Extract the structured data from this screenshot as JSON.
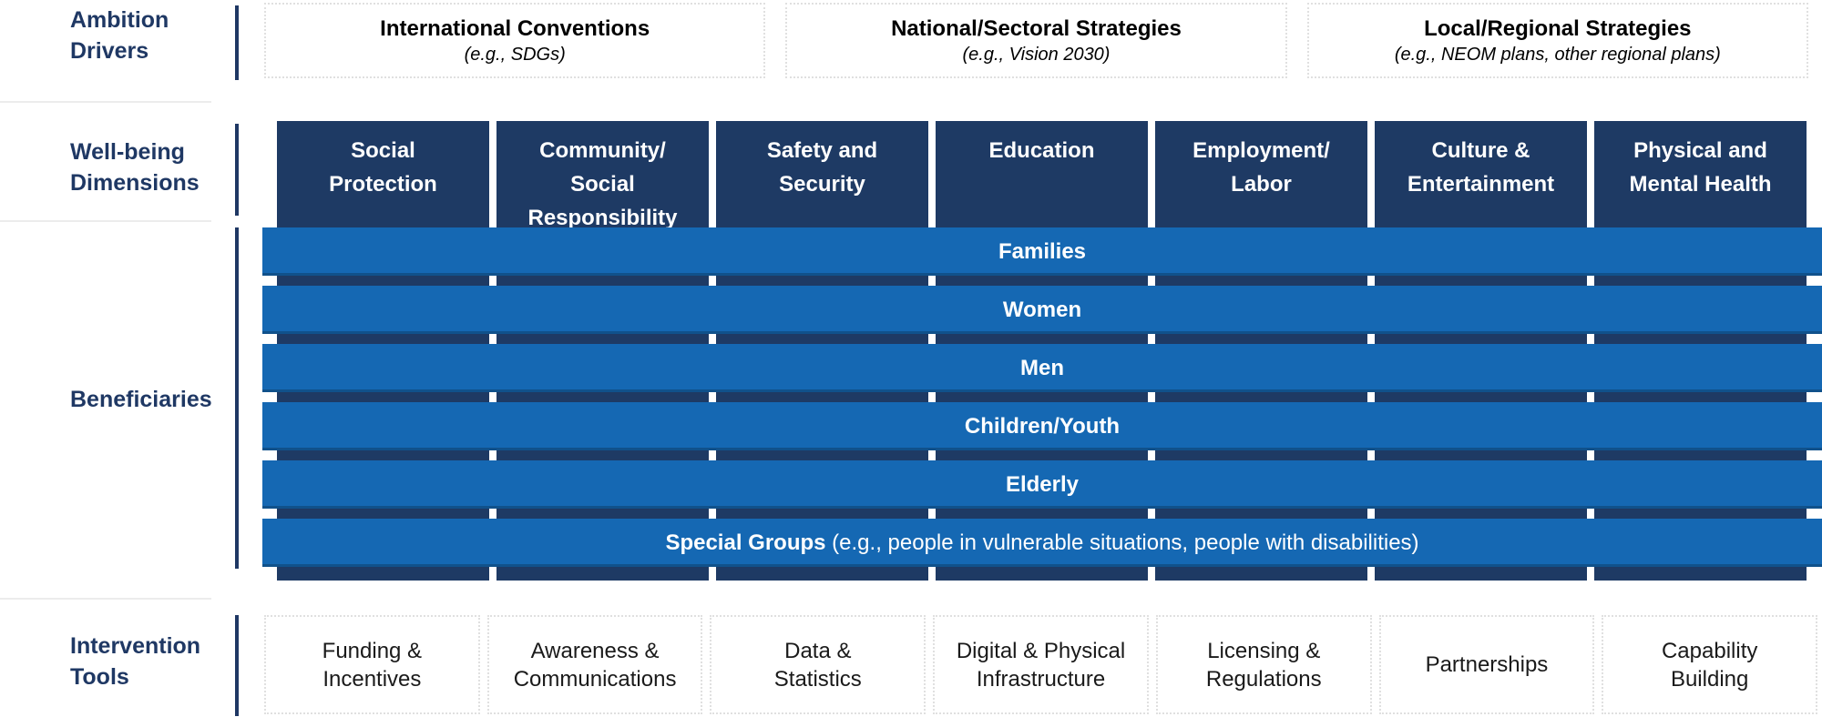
{
  "palette": {
    "navy": "#1E3A64",
    "bar_blue": "#1568B3",
    "label_navy": "#1F3864",
    "dotted_border_gray": "#E0E0E0",
    "separator_gray": "#ECECEC",
    "white": "#FFFFFF",
    "black": "#000000"
  },
  "row_labels": {
    "ambition": "Ambition\nDrivers",
    "wellbeing": "Well-being\nDimensions",
    "beneficiaries": "Beneficiaries",
    "intervention": "Intervention\nTools"
  },
  "ambition_drivers": {
    "items": [
      {
        "title": "International Conventions",
        "example": "(e.g., SDGs)"
      },
      {
        "title": "National/Sectoral Strategies",
        "example": "(e.g., Vision 2030)"
      },
      {
        "title": "Local/Regional Strategies",
        "example": "(e.g., NEOM plans, other regional plans)"
      }
    ]
  },
  "wellbeing_dimensions": {
    "columns": [
      {
        "label": "Social\nProtection"
      },
      {
        "label": "Community/\nSocial\nResponsibility"
      },
      {
        "label": "Safety and\nSecurity"
      },
      {
        "label": "Education"
      },
      {
        "label": "Employment/\nLabor"
      },
      {
        "label": "Culture &\nEntertainment"
      },
      {
        "label": "Physical and\nMental Health"
      }
    ]
  },
  "beneficiaries": {
    "bars": [
      {
        "label": "Families"
      },
      {
        "label": "Women"
      },
      {
        "label": "Men"
      },
      {
        "label": "Children/Youth"
      },
      {
        "label": "Elderly"
      },
      {
        "label": "Special Groups",
        "note": " (e.g., people in vulnerable situations, people with disabilities)"
      }
    ]
  },
  "intervention_tools": {
    "items": [
      {
        "label": "Funding &\nIncentives"
      },
      {
        "label": "Awareness &\nCommunications"
      },
      {
        "label": "Data &\nStatistics"
      },
      {
        "label": "Digital & Physical\nInfrastructure"
      },
      {
        "label": "Licensing &\nRegulations"
      },
      {
        "label": "Partnerships"
      },
      {
        "label": "Capability\nBuilding"
      }
    ]
  }
}
